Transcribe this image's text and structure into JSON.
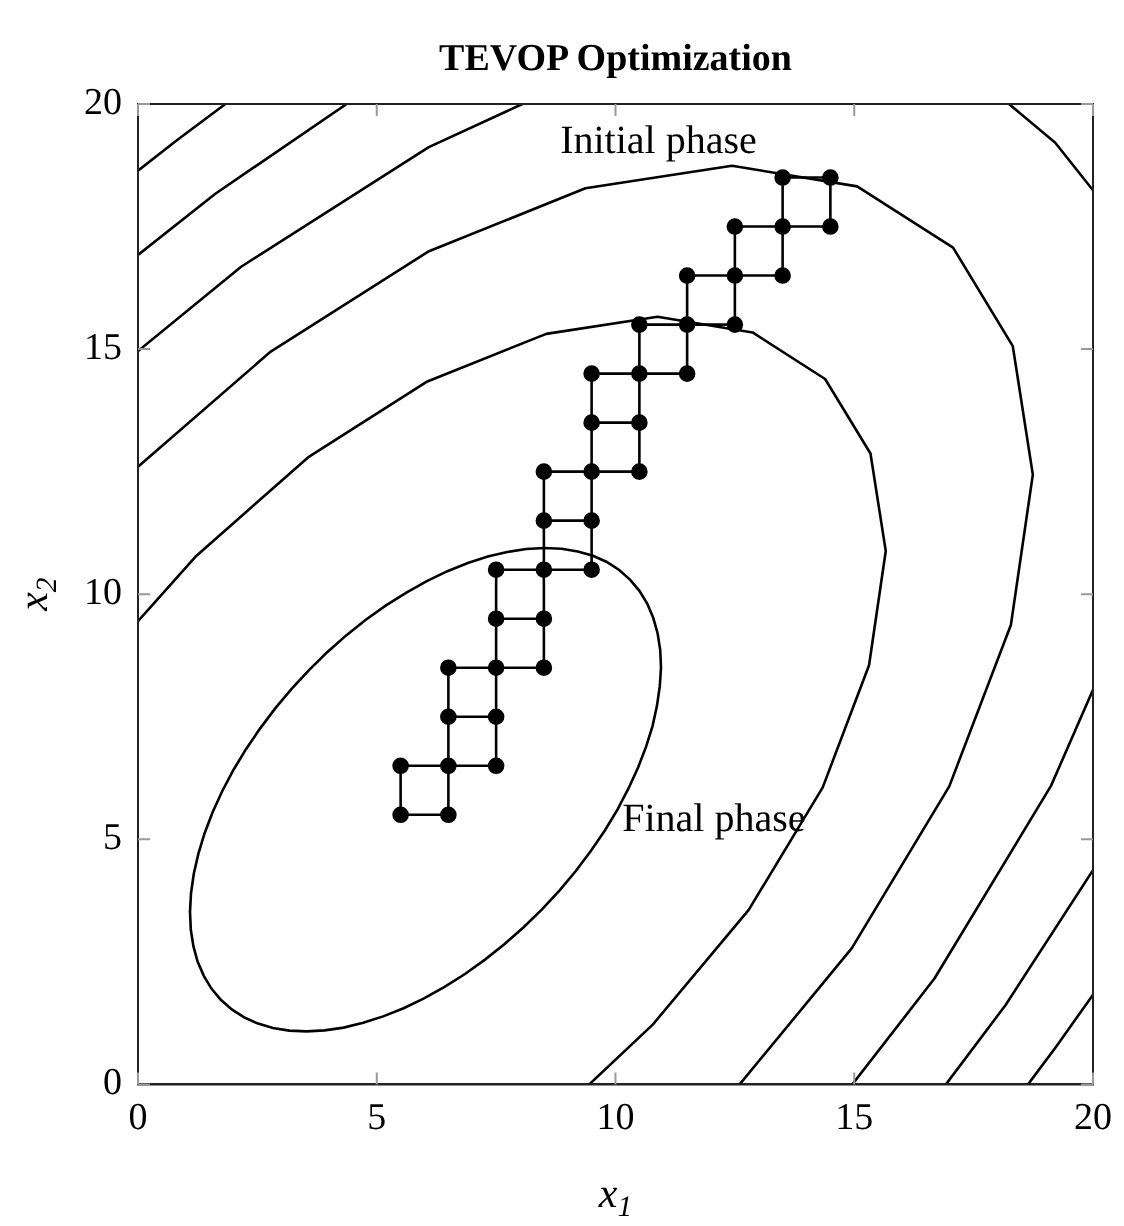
{
  "chart_data": {
    "type": "line",
    "title": "TEVOP Optimization",
    "xlabel": "x$_{1}$",
    "ylabel": "x$_{2}$",
    "xlim": [
      0,
      20
    ],
    "ylim": [
      0,
      20
    ],
    "xticks": [
      0,
      5,
      10,
      15,
      20
    ],
    "yticks": [
      0,
      5,
      10,
      15,
      20
    ],
    "grid": false,
    "annotations": [
      "Initial phase",
      "Final phase"
    ],
    "series": [
      {
        "color": "#000000",
        "marker": "none",
        "x": [
          0,
          1.22,
          3.56,
          6.06,
          8.55,
          10.88,
          12.87,
          14.39,
          15.34,
          15.66,
          15.31,
          14.34,
          12.79,
          10.78,
          9.45
        ],
        "values": [
          9.45,
          10.78,
          12.79,
          14.34,
          15.31,
          15.66,
          15.34,
          14.39,
          12.87,
          10.88,
          8.55,
          6.06,
          3.56,
          1.22,
          0
        ]
      },
      {
        "color": "#000000",
        "marker": "none",
        "x": [
          0,
          2.78,
          6.08,
          9.37,
          12.44,
          15.06,
          17.07,
          18.32,
          18.74,
          18.28,
          16.99,
          14.95,
          12.6
        ],
        "values": [
          12.6,
          14.95,
          16.99,
          18.28,
          18.74,
          18.32,
          17.07,
          15.06,
          12.44,
          9.37,
          6.08,
          2.78,
          0
        ]
      },
      {
        "color": "#000000",
        "marker": "none",
        "x": [
          0,
          2.16,
          6.09,
          8.05,
          null,
          18.24,
          19.21,
          20,
          null,
          20,
          19.12,
          16.68,
          14.96
        ],
        "values": [
          14.96,
          16.68,
          19.12,
          20,
          null,
          20,
          19.21,
          18.24,
          null,
          8.05,
          6.09,
          2.16,
          0
        ]
      },
      {
        "color": "#000000",
        "marker": "none",
        "x": [
          0,
          1.62,
          4.37,
          null,
          20,
          18.17,
          16.92
        ],
        "values": [
          16.92,
          18.17,
          20,
          null,
          4.37,
          1.62,
          0
        ]
      },
      {
        "color": "#000000",
        "marker": "none",
        "x": [
          0,
          0.8,
          1.83,
          null,
          20,
          19.25,
          18.64
        ],
        "values": [
          18.64,
          19.25,
          20,
          null,
          1.83,
          0.8,
          0
        ]
      },
      {
        "color": "#000000",
        "marker": "none",
        "x": [
          13.5,
          14.5,
          null,
          12.5,
          14.5,
          null,
          11.5,
          13.5,
          null,
          10.5,
          12.5,
          null,
          9.5,
          11.5,
          null,
          9.5,
          10.5,
          null,
          8.5,
          10.5,
          null,
          8.5,
          9.5,
          null,
          7.5,
          9.5,
          null,
          7.5,
          8.5,
          null,
          6.5,
          8.5,
          null,
          6.5,
          7.5,
          null,
          5.5,
          7.5,
          null,
          5.5,
          6.5,
          null,
          14.5,
          14.5,
          null,
          13.5,
          13.5,
          null,
          12.5,
          12.5,
          null,
          11.5,
          11.5,
          null,
          10.5,
          10.5,
          null,
          9.5,
          9.5,
          null,
          8.5,
          8.5,
          null,
          7.5,
          7.5,
          null,
          6.5,
          6.5,
          null,
          5.5,
          5.5
        ],
        "values": [
          18.5,
          18.5,
          null,
          17.5,
          17.5,
          null,
          16.5,
          16.5,
          null,
          15.5,
          15.5,
          null,
          14.5,
          14.5,
          null,
          13.5,
          13.5,
          null,
          12.5,
          12.5,
          null,
          11.5,
          11.5,
          null,
          10.5,
          10.5,
          null,
          9.5,
          9.5,
          null,
          8.5,
          8.5,
          null,
          7.5,
          7.5,
          null,
          6.5,
          6.5,
          null,
          5.5,
          5.5,
          null,
          17.5,
          18.5,
          null,
          16.5,
          18.5,
          null,
          15.5,
          17.5,
          null,
          14.5,
          16.5,
          null,
          12.5,
          15.5,
          null,
          10.5,
          14.5,
          null,
          8.5,
          12.5,
          null,
          6.5,
          10.5,
          null,
          5.5,
          8.5,
          null,
          5.5,
          6.5
        ]
      },
      {
        "type": "scatter",
        "color": "#000000",
        "marker": "circle",
        "x": [
          13.5,
          14.5,
          12.5,
          13.5,
          14.5,
          11.5,
          12.5,
          13.5,
          10.5,
          11.5,
          12.5,
          9.5,
          10.5,
          11.5,
          9.5,
          10.5,
          8.5,
          9.5,
          10.5,
          8.5,
          9.5,
          7.5,
          8.5,
          9.5,
          7.5,
          8.5,
          6.5,
          7.5,
          8.5,
          6.5,
          7.5,
          5.5,
          6.5,
          7.5,
          5.5,
          6.5
        ],
        "values": [
          18.5,
          18.5,
          17.5,
          17.5,
          17.5,
          16.5,
          16.5,
          16.5,
          15.5,
          15.5,
          15.5,
          14.5,
          14.5,
          14.5,
          13.5,
          13.5,
          12.5,
          12.5,
          12.5,
          11.5,
          11.5,
          10.5,
          10.5,
          10.5,
          9.5,
          9.5,
          8.5,
          8.5,
          8.5,
          7.5,
          7.5,
          6.5,
          6.5,
          6.5,
          5.5,
          5.5
        ]
      }
    ]
  }
}
